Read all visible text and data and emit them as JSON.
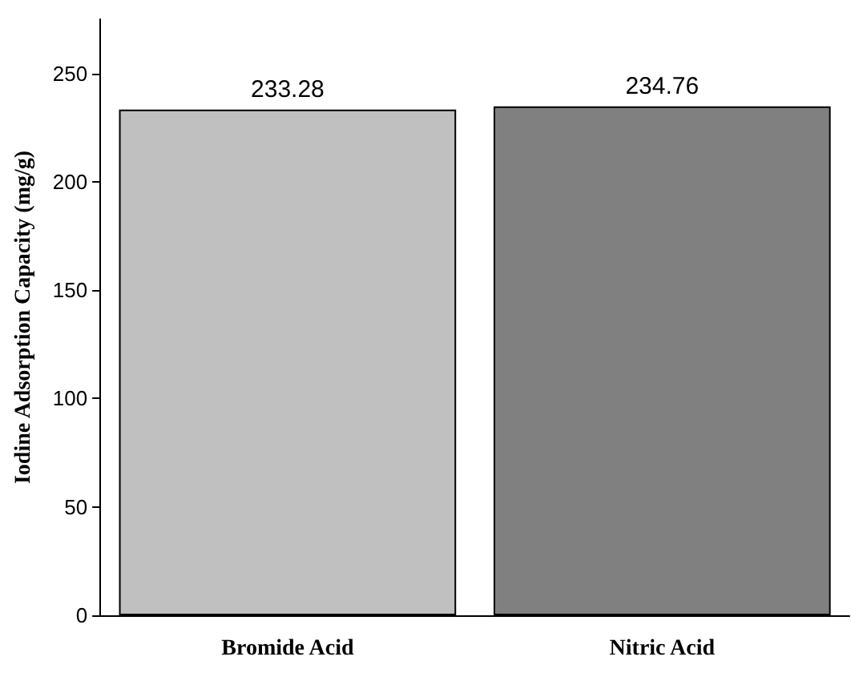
{
  "chart_data": {
    "type": "bar",
    "ylabel": "Iodine Adsorption Capacity (mg/g)",
    "categories": [
      "Bromide Acid",
      "Nitric Acid"
    ],
    "values": [
      233.28,
      234.76
    ],
    "colors": [
      "#c0c0c0",
      "#808080"
    ],
    "ylim": [
      0,
      275
    ],
    "yticks": [
      0,
      50,
      100,
      150,
      200,
      250
    ],
    "data_labels": true
  }
}
